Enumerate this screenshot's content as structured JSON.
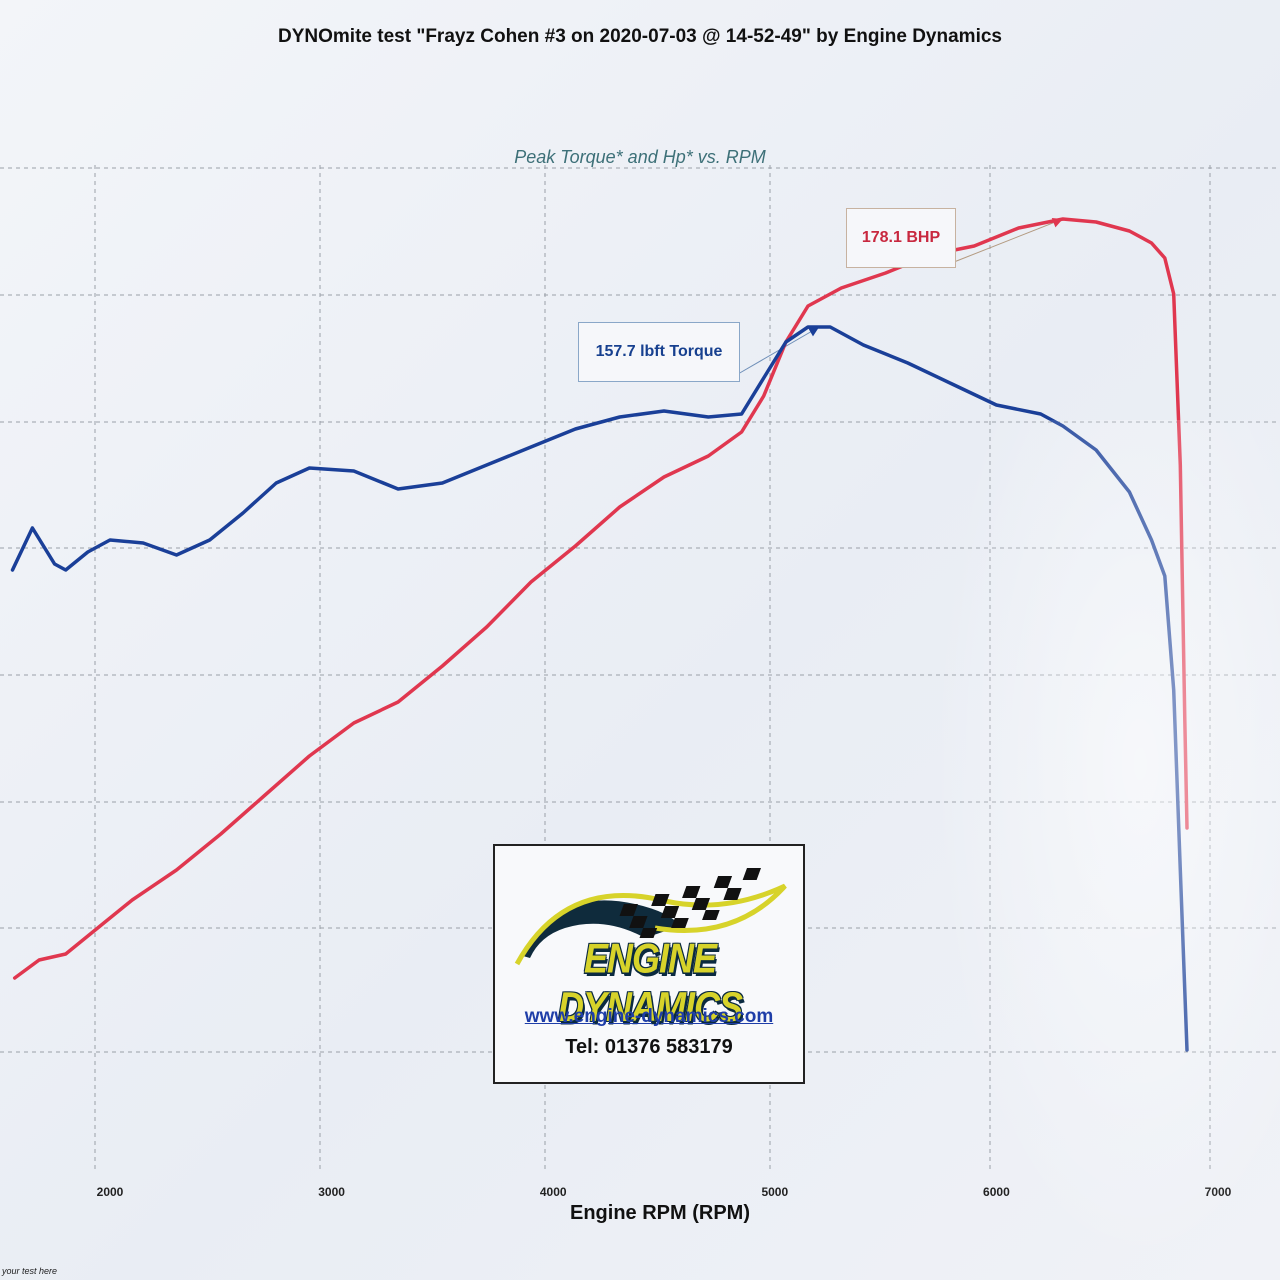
{
  "chart_data": {
    "type": "line",
    "title": "DYNOmite test \"Frayz Cohen #3 on 2020-07-03 @ 14-52-49\" by Engine Dynamics",
    "subtitle": "Peak Torque* and Hp* vs. RPM",
    "xlabel": "Engine RPM (RPM)",
    "ylabel": "",
    "xlim": [
      1550,
      7000
    ],
    "x_ticks": [
      "2000",
      "3000",
      "4000",
      "5000",
      "6000",
      "7000"
    ],
    "grid": true,
    "series": [
      {
        "name": "178.1 BHP",
        "color": "#e0374f",
        "points": [
          [
            1570,
            24
          ],
          [
            1680,
            30
          ],
          [
            1800,
            32
          ],
          [
            1950,
            41
          ],
          [
            2100,
            50
          ],
          [
            2300,
            60
          ],
          [
            2500,
            72
          ],
          [
            2700,
            85
          ],
          [
            2900,
            98
          ],
          [
            3100,
            109
          ],
          [
            3300,
            116
          ],
          [
            3500,
            128
          ],
          [
            3700,
            141
          ],
          [
            3900,
            156
          ],
          [
            4100,
            168
          ],
          [
            4300,
            181
          ],
          [
            4500,
            191
          ],
          [
            4700,
            198
          ],
          [
            4850,
            206
          ],
          [
            4950,
            218
          ],
          [
            5050,
            236
          ],
          [
            5150,
            248
          ],
          [
            5300,
            254
          ],
          [
            5500,
            259
          ],
          [
            5700,
            265
          ],
          [
            5900,
            268
          ],
          [
            6100,
            274
          ],
          [
            6300,
            277
          ],
          [
            6450,
            276
          ],
          [
            6600,
            273
          ],
          [
            6700,
            269
          ],
          [
            6760,
            264
          ],
          [
            6800,
            252
          ],
          [
            6830,
            195
          ],
          [
            6850,
            110
          ],
          [
            6860,
            74
          ]
        ]
      },
      {
        "name": "157.7 lbft Torque",
        "color": "#1a3f98",
        "points": [
          [
            1560,
            160
          ],
          [
            1650,
            174
          ],
          [
            1750,
            162
          ],
          [
            1800,
            160
          ],
          [
            1900,
            166
          ],
          [
            2000,
            170
          ],
          [
            2150,
            169
          ],
          [
            2300,
            165
          ],
          [
            2450,
            170
          ],
          [
            2600,
            179
          ],
          [
            2750,
            189
          ],
          [
            2900,
            194
          ],
          [
            3100,
            193
          ],
          [
            3300,
            187
          ],
          [
            3500,
            189
          ],
          [
            3700,
            195
          ],
          [
            3900,
            201
          ],
          [
            4100,
            207
          ],
          [
            4300,
            211
          ],
          [
            4500,
            213
          ],
          [
            4700,
            211
          ],
          [
            4850,
            212
          ],
          [
            4950,
            224
          ],
          [
            5050,
            236
          ],
          [
            5150,
            241
          ],
          [
            5250,
            241
          ],
          [
            5400,
            235
          ],
          [
            5600,
            229
          ],
          [
            5800,
            222
          ],
          [
            6000,
            215
          ],
          [
            6200,
            212
          ],
          [
            6300,
            208
          ],
          [
            6450,
            200
          ],
          [
            6600,
            186
          ],
          [
            6700,
            170
          ],
          [
            6760,
            158
          ],
          [
            6800,
            120
          ],
          [
            6830,
            60
          ],
          [
            6860,
            0
          ]
        ]
      }
    ],
    "annotations": [
      {
        "text": "178.1 BHP",
        "at_rpm": 6300,
        "series": 0
      },
      {
        "text": "157.7 lbft Torque",
        "at_rpm": 5200,
        "series": 1
      }
    ]
  },
  "logo": {
    "name": "ENGINE DYNAMICS",
    "url": "www.engine-dynamics.com",
    "tel": "Tel: 01376 583179"
  },
  "footer_note": "your test here"
}
